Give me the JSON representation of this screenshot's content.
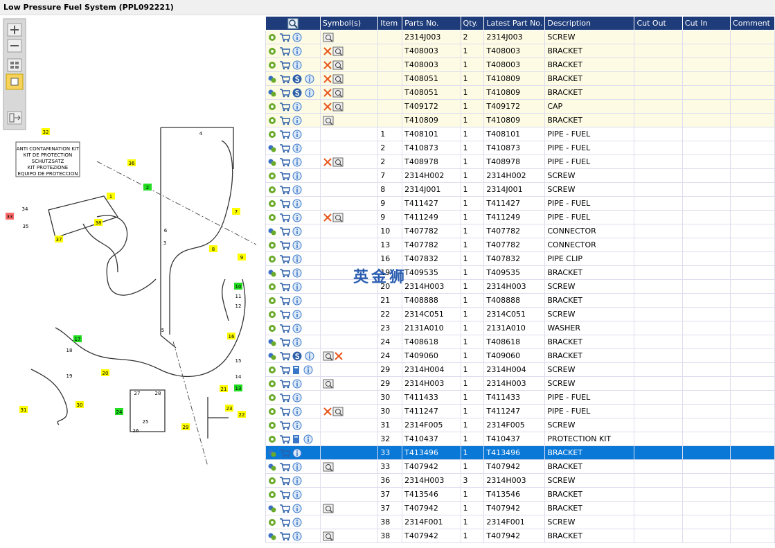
{
  "header": {
    "title": "Low Pressure Fuel System (PPL092221)"
  },
  "diagram": {
    "kit_text": [
      "ANTI CONTAMINATION KIT",
      "KIT DE PROTECTION",
      "SCHUTZSATZ",
      "KIT PROTEZIONE",
      "EQUIPO DE PROTECCION"
    ],
    "labels": [
      "32",
      "36",
      "2",
      "4",
      "7",
      "34",
      "33",
      "35",
      "37",
      "38",
      "1",
      "6",
      "3",
      "8",
      "9",
      "10",
      "11",
      "12",
      "5",
      "16",
      "17",
      "18",
      "19",
      "20",
      "15",
      "14",
      "13",
      "21",
      "23",
      "22",
      "24",
      "27",
      "28",
      "25",
      "26",
      "29",
      "30",
      "31"
    ]
  },
  "watermark": "英金狮",
  "table": {
    "columns": [
      "Symbol(s)",
      "Item",
      "Parts No.",
      "Qty.",
      "Latest Part No.",
      "Description",
      "Cut Out",
      "Cut In",
      "Comment"
    ],
    "rows": [
      {
        "item": "",
        "part_no": "2314J003",
        "qty": 2,
        "latest_part_no": "2314J003",
        "description": "SCREW"
      },
      {
        "item": "",
        "part_no": "T408003",
        "qty": 1,
        "latest_part_no": "T408003",
        "description": "BRACKET"
      },
      {
        "item": "",
        "part_no": "T408003",
        "qty": 1,
        "latest_part_no": "T408003",
        "description": "BRACKET"
      },
      {
        "item": "",
        "part_no": "T408051",
        "qty": 1,
        "latest_part_no": "T410809",
        "description": "BRACKET"
      },
      {
        "item": "",
        "part_no": "T408051",
        "qty": 1,
        "latest_part_no": "T410809",
        "description": "BRACKET"
      },
      {
        "item": "",
        "part_no": "T409172",
        "qty": 1,
        "latest_part_no": "T409172",
        "description": "CAP"
      },
      {
        "item": "",
        "part_no": "T410809",
        "qty": 1,
        "latest_part_no": "T410809",
        "description": "BRACKET"
      },
      {
        "item": "1",
        "part_no": "T408101",
        "qty": 1,
        "latest_part_no": "T408101",
        "description": "PIPE - FUEL"
      },
      {
        "item": "2",
        "part_no": "T410873",
        "qty": 1,
        "latest_part_no": "T410873",
        "description": "PIPE - FUEL"
      },
      {
        "item": "2",
        "part_no": "T408978",
        "qty": 1,
        "latest_part_no": "T408978",
        "description": "PIPE - FUEL"
      },
      {
        "item": "7",
        "part_no": "2314H002",
        "qty": 1,
        "latest_part_no": "2314H002",
        "description": "SCREW"
      },
      {
        "item": "8",
        "part_no": "2314J001",
        "qty": 1,
        "latest_part_no": "2314J001",
        "description": "SCREW"
      },
      {
        "item": "9",
        "part_no": "T411427",
        "qty": 1,
        "latest_part_no": "T411427",
        "description": "PIPE - FUEL"
      },
      {
        "item": "9",
        "part_no": "T411249",
        "qty": 1,
        "latest_part_no": "T411249",
        "description": "PIPE - FUEL"
      },
      {
        "item": "10",
        "part_no": "T407782",
        "qty": 1,
        "latest_part_no": "T407782",
        "description": "CONNECTOR"
      },
      {
        "item": "13",
        "part_no": "T407782",
        "qty": 1,
        "latest_part_no": "T407782",
        "description": "CONNECTOR"
      },
      {
        "item": "16",
        "part_no": "T407832",
        "qty": 1,
        "latest_part_no": "T407832",
        "description": "PIPE CLIP"
      },
      {
        "item": "19",
        "part_no": "T409535",
        "qty": 1,
        "latest_part_no": "T409535",
        "description": "BRACKET"
      },
      {
        "item": "20",
        "part_no": "2314H003",
        "qty": 1,
        "latest_part_no": "2314H003",
        "description": "SCREW"
      },
      {
        "item": "21",
        "part_no": "T408888",
        "qty": 1,
        "latest_part_no": "T408888",
        "description": "BRACKET"
      },
      {
        "item": "22",
        "part_no": "2314C051",
        "qty": 1,
        "latest_part_no": "2314C051",
        "description": "SCREW"
      },
      {
        "item": "23",
        "part_no": "2131A010",
        "qty": 1,
        "latest_part_no": "2131A010",
        "description": "WASHER"
      },
      {
        "item": "24",
        "part_no": "T408618",
        "qty": 1,
        "latest_part_no": "T408618",
        "description": "BRACKET"
      },
      {
        "item": "24",
        "part_no": "T409060",
        "qty": 1,
        "latest_part_no": "T409060",
        "description": "BRACKET"
      },
      {
        "item": "29",
        "part_no": "2314H004",
        "qty": 1,
        "latest_part_no": "2314H004",
        "description": "SCREW"
      },
      {
        "item": "29",
        "part_no": "2314H003",
        "qty": 1,
        "latest_part_no": "2314H003",
        "description": "SCREW"
      },
      {
        "item": "30",
        "part_no": "T411433",
        "qty": 1,
        "latest_part_no": "T411433",
        "description": "PIPE - FUEL"
      },
      {
        "item": "30",
        "part_no": "T411247",
        "qty": 1,
        "latest_part_no": "T411247",
        "description": "PIPE - FUEL"
      },
      {
        "item": "31",
        "part_no": "2314F005",
        "qty": 1,
        "latest_part_no": "2314F005",
        "description": "SCREW"
      },
      {
        "item": "32",
        "part_no": "T410437",
        "qty": 1,
        "latest_part_no": "T410437",
        "description": "PROTECTION KIT"
      },
      {
        "item": "33",
        "part_no": "T413496",
        "qty": 1,
        "latest_part_no": "T413496",
        "description": "BRACKET"
      },
      {
        "item": "33",
        "part_no": "T407942",
        "qty": 1,
        "latest_part_no": "T407942",
        "description": "BRACKET"
      },
      {
        "item": "36",
        "part_no": "2314H003",
        "qty": 3,
        "latest_part_no": "2314H003",
        "description": "SCREW"
      },
      {
        "item": "37",
        "part_no": "T413546",
        "qty": 1,
        "latest_part_no": "T413546",
        "description": "BRACKET"
      },
      {
        "item": "37",
        "part_no": "T407942",
        "qty": 1,
        "latest_part_no": "T407942",
        "description": "BRACKET"
      },
      {
        "item": "38",
        "part_no": "2314F001",
        "qty": 1,
        "latest_part_no": "2314F001",
        "description": "SCREW"
      },
      {
        "item": "38",
        "part_no": "T407942",
        "qty": 1,
        "latest_part_no": "T407942",
        "description": "BRACKET"
      }
    ]
  }
}
